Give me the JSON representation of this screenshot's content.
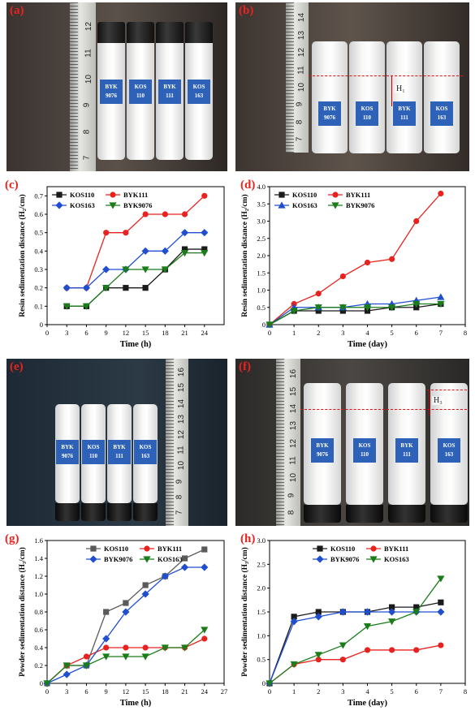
{
  "photos": [
    {
      "label": "(a)",
      "tags": [
        "BYK\n9076",
        "KOS\n110",
        "BYK\n111",
        "KOS\n163"
      ],
      "ruler": [
        "7",
        "8",
        "9",
        "10",
        "11",
        "12"
      ],
      "marker": ""
    },
    {
      "label": "(b)",
      "tags": [
        "BYK\n9076",
        "KOS\n110",
        "BYK\n111",
        "KOS\n163"
      ],
      "ruler": [
        "7",
        "8",
        "9",
        "10",
        "11",
        "12",
        "13",
        "14"
      ],
      "marker": "H₁"
    },
    {
      "label": "(e)",
      "tags": [
        "BYK\n9076",
        "KOS\n110",
        "BYK\n111",
        "KOS\n163"
      ],
      "ruler": [
        "7",
        "8",
        "9",
        "10",
        "11",
        "12",
        "13",
        "14",
        "15",
        "16"
      ],
      "marker": ""
    },
    {
      "label": "(f)",
      "tags": [
        "BYK\n9076",
        "KOS\n110",
        "BYK\n111",
        "KOS\n163"
      ],
      "ruler": [
        "8",
        "9",
        "10",
        "11",
        "12",
        "13",
        "14",
        "15",
        "16"
      ],
      "marker": "H₃"
    }
  ],
  "colors": {
    "black": "#1a1a1a",
    "red": "#e8231f",
    "blue": "#1f4fcf",
    "green": "#1a7d1a",
    "label": "#e8231f",
    "tag": "#2e62b8"
  },
  "chart_data": [
    {
      "label": "(c)",
      "type": "line",
      "xlabel": "Time (h)",
      "ylabel": "Resin sedimentation distance (H₂/cm)",
      "x": [
        3,
        6,
        9,
        12,
        15,
        18,
        21,
        24
      ],
      "xlim": [
        0,
        27
      ],
      "xticks": [
        0,
        3,
        6,
        9,
        12,
        15,
        18,
        21,
        24
      ],
      "ylim": [
        0,
        0.75
      ],
      "yticks": [
        0,
        0.1,
        0.2,
        0.3,
        0.4,
        0.5,
        0.6,
        0.7
      ],
      "ydec": 1,
      "legend": "top-left",
      "legend_cols": 2,
      "series": [
        {
          "name": "KOS110",
          "color": "#1a1a1a",
          "marker": "square",
          "values": [
            0.1,
            0.1,
            0.2,
            0.2,
            0.2,
            0.3,
            0.41,
            0.41
          ]
        },
        {
          "name": "BYK111",
          "color": "#e8231f",
          "marker": "circle",
          "values": [
            0.2,
            0.2,
            0.5,
            0.5,
            0.6,
            0.6,
            0.6,
            0.7
          ]
        },
        {
          "name": "KOS163",
          "color": "#1f4fcf",
          "marker": "diamond",
          "values": [
            0.2,
            0.2,
            0.3,
            0.3,
            0.4,
            0.4,
            0.5,
            0.5
          ]
        },
        {
          "name": "BYK9076",
          "color": "#1a7d1a",
          "marker": "tri-down",
          "values": [
            0.1,
            0.1,
            0.2,
            0.3,
            0.3,
            0.3,
            0.39,
            0.39
          ]
        }
      ]
    },
    {
      "label": "(d)",
      "type": "line",
      "xlabel": "Time (day)",
      "ylabel": "Resin sedimentation distance (H₂/cm)",
      "x": [
        0,
        1,
        2,
        3,
        4,
        5,
        6,
        7
      ],
      "xlim": [
        0,
        8
      ],
      "xticks": [
        0,
        1,
        2,
        3,
        4,
        5,
        6,
        7,
        8
      ],
      "ylim": [
        0,
        4.0
      ],
      "yticks": [
        0,
        0.5,
        1.0,
        1.5,
        2.0,
        2.5,
        3.0,
        3.5,
        4.0
      ],
      "ydec": 1,
      "legend": "top-left",
      "legend_cols": 2,
      "series": [
        {
          "name": "KOS110",
          "color": "#1a1a1a",
          "marker": "square",
          "values": [
            0,
            0.4,
            0.4,
            0.4,
            0.4,
            0.5,
            0.5,
            0.6
          ]
        },
        {
          "name": "BYK111",
          "color": "#e8231f",
          "marker": "circle",
          "values": [
            0,
            0.6,
            0.9,
            1.4,
            1.8,
            1.9,
            3.0,
            3.8
          ]
        },
        {
          "name": "KOS163",
          "color": "#1f4fcf",
          "marker": "tri-up",
          "values": [
            0,
            0.5,
            0.5,
            0.5,
            0.6,
            0.6,
            0.7,
            0.8
          ]
        },
        {
          "name": "BYK9076",
          "color": "#1a7d1a",
          "marker": "tri-down",
          "values": [
            0,
            0.4,
            0.5,
            0.5,
            0.5,
            0.5,
            0.6,
            0.6
          ]
        }
      ]
    },
    {
      "label": "(g)",
      "type": "line",
      "xlabel": "Time (h)",
      "ylabel": "Powder sedimentation distance (H₃/cm)",
      "x": [
        0,
        3,
        6,
        9,
        12,
        15,
        18,
        21,
        24
      ],
      "xlim": [
        0,
        27
      ],
      "xticks": [
        0,
        3,
        6,
        9,
        12,
        15,
        18,
        21,
        24,
        27
      ],
      "ylim": [
        0,
        1.6
      ],
      "yticks": [
        0,
        0.2,
        0.4,
        0.6,
        0.8,
        1.0,
        1.2,
        1.4,
        1.6
      ],
      "ydec": 1,
      "legend": "top-center",
      "legend_cols": 2,
      "series": [
        {
          "name": "KOS110",
          "color": "#5a5a5a",
          "marker": "square",
          "values": [
            0,
            0.2,
            0.2,
            0.8,
            0.9,
            1.1,
            1.2,
            1.4,
            1.5
          ]
        },
        {
          "name": "BYK111",
          "color": "#e8231f",
          "marker": "circle",
          "values": [
            0,
            0.2,
            0.3,
            0.4,
            0.4,
            0.4,
            0.4,
            0.4,
            0.5
          ]
        },
        {
          "name": "BYK9076",
          "color": "#1f4fcf",
          "marker": "diamond",
          "values": [
            0,
            0.1,
            0.2,
            0.5,
            0.8,
            1.0,
            1.2,
            1.3,
            1.3
          ]
        },
        {
          "name": "KOS163",
          "color": "#1a7d1a",
          "marker": "tri-down",
          "values": [
            0,
            0.2,
            0.2,
            0.3,
            0.3,
            0.3,
            0.4,
            0.4,
            0.6
          ]
        }
      ]
    },
    {
      "label": "(h)",
      "type": "line",
      "xlabel": "Time (day)",
      "ylabel": "Powder sedimentation distance (H₃/cm)",
      "x": [
        0,
        1,
        2,
        3,
        4,
        5,
        6,
        7
      ],
      "xlim": [
        0,
        8
      ],
      "xticks": [
        0,
        1,
        2,
        3,
        4,
        5,
        6,
        7,
        8
      ],
      "ylim": [
        0,
        3.0
      ],
      "yticks": [
        0,
        0.5,
        1.0,
        1.5,
        2.0,
        2.5,
        3.0
      ],
      "ydec": 1,
      "legend": "top-center",
      "legend_cols": 2,
      "series": [
        {
          "name": "KOS110",
          "color": "#1a1a1a",
          "marker": "square",
          "values": [
            0,
            1.4,
            1.5,
            1.5,
            1.5,
            1.6,
            1.6,
            1.7
          ]
        },
        {
          "name": "BYK111",
          "color": "#e8231f",
          "marker": "circle",
          "values": [
            0,
            0.4,
            0.5,
            0.5,
            0.7,
            0.7,
            0.7,
            0.8
          ]
        },
        {
          "name": "BYK9076",
          "color": "#1f4fcf",
          "marker": "diamond",
          "values": [
            0,
            1.3,
            1.4,
            1.5,
            1.5,
            1.5,
            1.5,
            1.5
          ]
        },
        {
          "name": "KOS163",
          "color": "#1a7d1a",
          "marker": "tri-down",
          "values": [
            0,
            0.4,
            0.6,
            0.8,
            1.2,
            1.3,
            1.5,
            2.2
          ]
        }
      ]
    }
  ]
}
